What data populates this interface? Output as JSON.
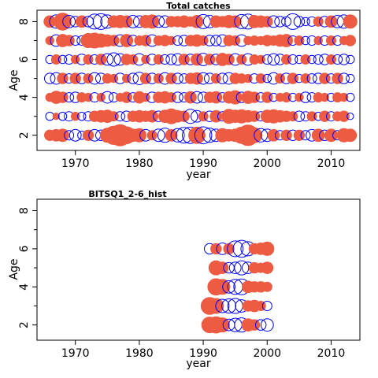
{
  "chart_data": [
    {
      "type": "scatter",
      "subtype": "residual-bubble",
      "title": "Total catches",
      "xlabel": "year",
      "ylabel": "Age",
      "xlim": [
        1964,
        2014.5
      ],
      "ylim": [
        1.2,
        8.6
      ],
      "xticks": [
        1970,
        1980,
        1990,
        2000,
        2010
      ],
      "yticks": [
        2,
        4,
        6,
        8
      ],
      "yminor": [
        3,
        5,
        7
      ],
      "positive_color": "#0000ff",
      "negative_color": "#ee5b43",
      "rows": [
        {
          "age": 2,
          "years": [
            1966,
            1967,
            1968,
            1969,
            1970,
            1971,
            1972,
            1973,
            1974,
            1975,
            1976,
            1977,
            1978,
            1979,
            1980,
            1981,
            1982,
            1983,
            1984,
            1985,
            1986,
            1987,
            1988,
            1989,
            1990,
            1991,
            1992,
            1993,
            1994,
            1995,
            1996,
            1997,
            1998,
            1999,
            2000,
            2001,
            2002,
            2003,
            2004,
            2005,
            2006,
            2007,
            2008,
            2009,
            2010,
            2011,
            2012,
            2013
          ],
          "residuals": [
            -0.5,
            -0.6,
            -0.7,
            0.4,
            0.6,
            0.3,
            -0.5,
            0.6,
            0.5,
            -0.9,
            -1.5,
            -2.0,
            -1.3,
            -0.7,
            -0.8,
            0.6,
            -0.4,
            0.7,
            0.9,
            -0.6,
            0.8,
            1.1,
            1.2,
            -1.2,
            1.3,
            0.9,
            0.7,
            -0.8,
            -0.6,
            -0.7,
            -1.2,
            -1.9,
            -1.0,
            0.8,
            0.7,
            -0.6,
            0.4,
            -0.5,
            0.5,
            -0.5,
            0.4,
            0.6,
            -0.7,
            0.5,
            -0.7,
            0.4,
            -0.8,
            -0.7
          ]
        },
        {
          "age": 3,
          "years": [
            1966,
            1967,
            1968,
            1969,
            1970,
            1971,
            1972,
            1973,
            1974,
            1975,
            1976,
            1977,
            1978,
            1979,
            1980,
            1981,
            1982,
            1983,
            1984,
            1985,
            1986,
            1987,
            1988,
            1989,
            1990,
            1991,
            1992,
            1993,
            1994,
            1995,
            1996,
            1997,
            1998,
            1999,
            2000,
            2001,
            2002,
            2003,
            2004,
            2005,
            2006,
            2007,
            2008,
            2009,
            2010,
            2011,
            2012,
            2013
          ],
          "residuals": [
            0.3,
            -0.2,
            0.3,
            0.4,
            -0.3,
            0.3,
            0.4,
            -0.5,
            -0.6,
            -0.7,
            -0.4,
            0.4,
            0.5,
            -0.5,
            -0.6,
            -0.5,
            -0.6,
            0.5,
            -0.7,
            -1.0,
            -0.6,
            -0.5,
            0.9,
            0.6,
            -0.4,
            0.5,
            -0.6,
            0.4,
            -0.9,
            -0.7,
            -0.8,
            -0.6,
            -0.5,
            0.4,
            -0.7,
            -0.8,
            -0.6,
            -0.5,
            -0.4,
            0.5,
            0.4,
            -0.4,
            0.3,
            -0.5,
            0.4,
            -0.4,
            -0.5,
            0.2
          ]
        },
        {
          "age": 4,
          "years": [
            1966,
            1967,
            1968,
            1969,
            1970,
            1971,
            1972,
            1973,
            1974,
            1975,
            1976,
            1977,
            1978,
            1979,
            1980,
            1981,
            1982,
            1983,
            1984,
            1985,
            1986,
            1987,
            1988,
            1989,
            1990,
            1991,
            1992,
            1993,
            1994,
            1995,
            1996,
            1997,
            1998,
            1999,
            2000,
            2001,
            2002,
            2003,
            2004,
            2005,
            2006,
            2007,
            2008,
            2009,
            2010,
            2011,
            2012,
            2013
          ],
          "residuals": [
            -0.3,
            -0.7,
            -0.5,
            0.4,
            0.5,
            -0.4,
            -0.3,
            0.4,
            -0.3,
            0.6,
            0.4,
            -0.3,
            -0.5,
            0.4,
            -0.6,
            -0.3,
            0.5,
            -0.5,
            -0.6,
            -0.4,
            0.5,
            0.4,
            -0.6,
            0.6,
            0.5,
            -0.5,
            -0.6,
            0.4,
            -0.6,
            -0.8,
            0.5,
            -0.7,
            -0.5,
            0.4,
            -0.5,
            0.3,
            -0.3,
            -0.4,
            0.3,
            -0.3,
            0.5,
            0.4,
            -0.4,
            -0.3,
            0.3,
            -0.4,
            -0.3,
            0.3
          ]
        },
        {
          "age": 5,
          "years": [
            1966,
            1967,
            1968,
            1969,
            1970,
            1971,
            1972,
            1973,
            1974,
            1975,
            1976,
            1977,
            1978,
            1979,
            1980,
            1981,
            1982,
            1983,
            1984,
            1985,
            1986,
            1987,
            1988,
            1989,
            1990,
            1991,
            1992,
            1993,
            1994,
            1995,
            1996,
            1997,
            1998,
            1999,
            2000,
            2001,
            2002,
            2003,
            2004,
            2005,
            2006,
            2007,
            2008,
            2009,
            2010,
            2011,
            2012,
            2013
          ],
          "residuals": [
            0.5,
            0.6,
            -0.5,
            0.4,
            -0.5,
            0.5,
            -0.4,
            0.6,
            0.5,
            -0.4,
            -0.3,
            0.5,
            -0.3,
            0.5,
            0.7,
            -0.5,
            0.5,
            -0.4,
            0.6,
            -0.5,
            0.5,
            0.4,
            -0.5,
            -0.6,
            0.6,
            0.5,
            -0.4,
            0.5,
            0.6,
            -0.5,
            -0.4,
            -0.3,
            0.4,
            -0.4,
            0.3,
            0.6,
            -0.4,
            0.5,
            -0.5,
            0.3,
            -0.4,
            0.4,
            0.5,
            -0.5,
            0.4,
            -0.5,
            0.5,
            0.3
          ]
        },
        {
          "age": 6,
          "years": [
            1966,
            1967,
            1968,
            1969,
            1970,
            1971,
            1972,
            1973,
            1974,
            1975,
            1976,
            1977,
            1978,
            1979,
            1980,
            1981,
            1982,
            1983,
            1984,
            1985,
            1986,
            1987,
            1988,
            1989,
            1990,
            1991,
            1992,
            1993,
            1994,
            1995,
            1996,
            1997,
            1998,
            1999,
            2000,
            2001,
            2002,
            2003,
            2004,
            2005,
            2006,
            2007,
            2008,
            2009,
            2010,
            2011,
            2012,
            2013
          ],
          "residuals": [
            0.3,
            -0.4,
            0.3,
            0.4,
            -0.3,
            0.5,
            -0.4,
            0.4,
            -0.5,
            0.6,
            0.8,
            0.6,
            -0.5,
            -0.4,
            0.6,
            -0.3,
            0.5,
            -0.4,
            0.4,
            0.5,
            0.6,
            -0.5,
            0.5,
            -0.6,
            0.7,
            -0.5,
            0.5,
            -0.7,
            -0.5,
            0.6,
            -0.4,
            0.6,
            -0.4,
            -0.3,
            0.4,
            0.6,
            0.5,
            -0.4,
            0.4,
            0.3,
            -0.4,
            0.3,
            0.4,
            0.5,
            -0.4,
            0.4,
            0.5,
            0.3
          ]
        },
        {
          "age": 7,
          "years": [
            1966,
            1967,
            1968,
            1969,
            1970,
            1971,
            1972,
            1973,
            1974,
            1975,
            1976,
            1977,
            1978,
            1979,
            1980,
            1981,
            1982,
            1983,
            1984,
            1985,
            1986,
            1987,
            1988,
            1989,
            1990,
            1991,
            1992,
            1993,
            1994,
            1995,
            1996,
            1997,
            1998,
            1999,
            2000,
            2001,
            2002,
            2003,
            2004,
            2005,
            2006,
            2007,
            2008,
            2009,
            2010,
            2011,
            2012,
            2013
          ],
          "residuals": [
            -0.3,
            0.6,
            -0.7,
            -0.5,
            0.4,
            0.4,
            -0.9,
            -1.0,
            -0.8,
            -0.6,
            -0.5,
            0.6,
            -0.7,
            0.5,
            -0.4,
            -0.5,
            0.6,
            -0.4,
            -0.5,
            -0.3,
            0.4,
            0.5,
            -0.5,
            -0.6,
            -0.4,
            0.5,
            0.5,
            0.6,
            -0.5,
            -0.4,
            0.6,
            -0.3,
            -0.4,
            -0.3,
            -0.5,
            -0.4,
            -0.6,
            -0.7,
            0.4,
            -0.4,
            0.3,
            0.4,
            -0.3,
            0.4,
            -0.4,
            0.4,
            -0.3,
            -0.5
          ]
        },
        {
          "age": 8,
          "years": [
            1966,
            1967,
            1968,
            1969,
            1970,
            1971,
            1972,
            1973,
            1974,
            1975,
            1976,
            1977,
            1978,
            1979,
            1980,
            1981,
            1982,
            1983,
            1984,
            1985,
            1986,
            1987,
            1988,
            1989,
            1990,
            1991,
            1992,
            1993,
            1994,
            1995,
            1996,
            1997,
            1998,
            1999,
            2000,
            2001,
            2002,
            2003,
            2004,
            2005,
            2006,
            2007,
            2008,
            2009,
            2010,
            2011,
            2012,
            2013
          ],
          "residuals": [
            -0.6,
            0.8,
            -1.3,
            0.7,
            0.5,
            -0.6,
            0.5,
            1.0,
            1.1,
            0.8,
            -0.6,
            -0.7,
            -0.6,
            0.7,
            0.6,
            -0.7,
            -0.8,
            0.6,
            0.6,
            -0.5,
            -0.5,
            -0.6,
            -0.4,
            -0.7,
            0.9,
            0.7,
            -0.6,
            -0.5,
            -0.7,
            -0.6,
            0.9,
            1.0,
            -0.7,
            -0.6,
            -0.5,
            0.6,
            0.5,
            0.4,
            1.1,
            0.5,
            0.3,
            0.4,
            -0.4,
            0.5,
            -0.6,
            0.7,
            0.8,
            -0.8
          ]
        }
      ]
    },
    {
      "type": "scatter",
      "subtype": "residual-bubble",
      "title": "BITSQ1_2-6_hist",
      "xlabel": "year",
      "ylabel": "Age",
      "xlim": [
        1964,
        2014.5
      ],
      "ylim": [
        1.2,
        8.6
      ],
      "xticks": [
        1970,
        1980,
        1990,
        2000,
        2010
      ],
      "yticks": [
        2,
        4,
        6,
        8
      ],
      "yminor": [
        3,
        5,
        7
      ],
      "positive_color": "#0000ff",
      "negative_color": "#ee5b43",
      "rows": [
        {
          "age": 2,
          "years": [
            1991,
            1992,
            1993,
            1994,
            1995,
            1996,
            1997,
            1998,
            1999,
            2000
          ],
          "residuals": [
            -1.1,
            -1.2,
            -0.9,
            0.6,
            0.8,
            0.9,
            -0.7,
            -0.5,
            0.5,
            0.7
          ]
        },
        {
          "age": 3,
          "years": [
            1991,
            1992,
            1993,
            1994,
            1995,
            1996,
            1997,
            1998,
            1999,
            2000
          ],
          "residuals": [
            -1.3,
            -1.0,
            0.8,
            0.9,
            1.0,
            0.7,
            -0.5,
            -0.6,
            -0.4,
            0.4
          ]
        },
        {
          "age": 4,
          "years": [
            1992,
            1993,
            1994,
            1995,
            1996,
            1997,
            1998,
            1999,
            2000
          ],
          "residuals": [
            -1.2,
            -1.0,
            0.7,
            1.0,
            1.1,
            -0.6,
            -0.5,
            -0.5,
            -0.4
          ]
        },
        {
          "age": 5,
          "years": [
            1992,
            1993,
            1994,
            1995,
            1996,
            1997,
            1998,
            1999,
            2000
          ],
          "residuals": [
            -0.9,
            -0.6,
            0.5,
            0.6,
            0.9,
            0.6,
            -0.5,
            -0.4,
            -0.6
          ]
        },
        {
          "age": 6,
          "years": [
            1991,
            1992,
            1993,
            1994,
            1995,
            1996,
            1997,
            1998,
            1999,
            2000
          ],
          "residuals": [
            0.5,
            -0.5,
            0.6,
            -0.5,
            1.1,
            1.3,
            0.9,
            -0.5,
            -0.6,
            -0.8
          ]
        }
      ]
    }
  ]
}
